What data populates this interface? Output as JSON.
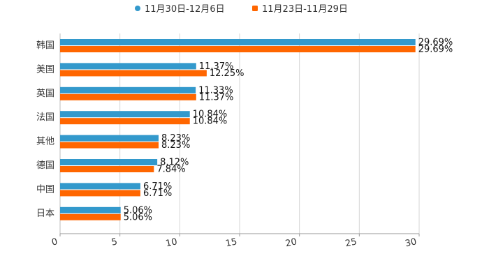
{
  "chart_data": {
    "type": "bar",
    "orientation": "horizontal",
    "categories": [
      "韩国",
      "美国",
      "英国",
      "法国",
      "其他",
      "德国",
      "中国",
      "日本"
    ],
    "series": [
      {
        "name": "11月30日-12月6日",
        "color": "#3399cc",
        "values": [
          29.69,
          11.37,
          11.33,
          10.84,
          8.23,
          8.12,
          6.71,
          5.06
        ],
        "labels": [
          "29.69%",
          "11.37%",
          "11.33%",
          "10.84%",
          "8.23%",
          "8.12%",
          "6.71%",
          "5.06%"
        ]
      },
      {
        "name": "11月23日-11月29日",
        "color": "#ff6600",
        "values": [
          29.69,
          12.25,
          11.37,
          10.84,
          8.23,
          7.84,
          6.71,
          5.06
        ],
        "labels": [
          "29.69%",
          "12.25%",
          "11.37%",
          "10.84%",
          "8.23%",
          "7.84%",
          "6.71%",
          "5.06%"
        ]
      }
    ],
    "xlim": [
      0,
      30
    ],
    "xticks": [
      "0",
      "5",
      "10",
      "15",
      "20",
      "25",
      "30"
    ],
    "grid": true,
    "legend": "top-center",
    "title": "",
    "xlabel": "",
    "ylabel": ""
  }
}
